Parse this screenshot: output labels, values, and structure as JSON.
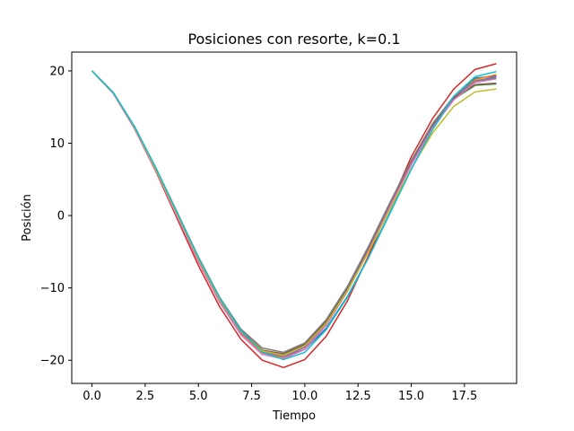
{
  "chart_data": {
    "type": "line",
    "title": "Posiciones con resorte, k=0.1",
    "xlabel": "Tiempo",
    "ylabel": "Posición",
    "xlim": [
      -0.95,
      19.95
    ],
    "ylim": [
      -23.2,
      22.6
    ],
    "xticks": [
      0.0,
      2.5,
      5.0,
      7.5,
      10.0,
      12.5,
      15.0,
      17.5
    ],
    "xtick_labels": [
      "0.0",
      "2.5",
      "5.0",
      "7.5",
      "10.0",
      "12.5",
      "15.0",
      "17.5"
    ],
    "yticks": [
      -20,
      -10,
      0,
      10,
      20
    ],
    "ytick_labels": [
      "−20",
      "−10",
      "0",
      "10",
      "20"
    ],
    "grid": false,
    "x": [
      0,
      1,
      2,
      3,
      4,
      5,
      6,
      7,
      8,
      9,
      10,
      11,
      12,
      13,
      14,
      15,
      16,
      17,
      18,
      19
    ],
    "series": [
      {
        "color": "#1f77b4",
        "values": [
          20,
          17.0,
          12.3,
          6.6,
          0.4,
          -5.8,
          -11.4,
          -15.9,
          -18.7,
          -19.6,
          -18.5,
          -15.6,
          -11.2,
          -5.7,
          0.4,
          6.4,
          11.9,
          16.3,
          19.0,
          19.3
        ]
      },
      {
        "color": "#ff7f0e",
        "values": [
          20,
          16.9,
          12.1,
          6.3,
          0.0,
          -6.2,
          -11.9,
          -16.3,
          -19.0,
          -19.6,
          -18.2,
          -14.9,
          -10.2,
          -4.6,
          1.4,
          7.2,
          12.3,
          16.3,
          18.8,
          19.5
        ]
      },
      {
        "color": "#2ca02c",
        "values": [
          20,
          17.0,
          12.2,
          6.5,
          0.3,
          -5.9,
          -11.5,
          -16.0,
          -18.6,
          -19.2,
          -17.9,
          -14.8,
          -10.2,
          -4.7,
          1.3,
          7.2,
          12.3,
          16.1,
          18.0,
          18.2
        ]
      },
      {
        "color": "#d62728",
        "values": [
          20,
          16.9,
          12.0,
          6.1,
          -0.4,
          -6.9,
          -12.6,
          -17.1,
          -20.0,
          -21.0,
          -19.9,
          -16.7,
          -11.8,
          -5.5,
          1.4,
          8.1,
          13.4,
          17.5,
          20.2,
          21.0
        ]
      },
      {
        "color": "#9467bd",
        "values": [
          20,
          16.9,
          12.1,
          6.3,
          0.1,
          -6.1,
          -11.7,
          -16.1,
          -18.8,
          -19.5,
          -18.2,
          -15.0,
          -10.3,
          -4.7,
          1.3,
          7.1,
          12.2,
          16.2,
          18.6,
          19.2
        ]
      },
      {
        "color": "#8c564b",
        "values": [
          20,
          17.0,
          12.2,
          6.5,
          0.3,
          -5.9,
          -11.5,
          -15.9,
          -18.6,
          -19.1,
          -17.8,
          -14.6,
          -9.9,
          -4.3,
          1.7,
          7.5,
          12.6,
          16.3,
          18.1,
          18.3
        ]
      },
      {
        "color": "#e377c2",
        "values": [
          20,
          16.9,
          12.0,
          6.2,
          -0.1,
          -6.4,
          -12.0,
          -16.5,
          -19.2,
          -19.8,
          -18.5,
          -15.2,
          -10.5,
          -4.9,
          1.2,
          7.0,
          12.1,
          16.0,
          18.4,
          18.9
        ]
      },
      {
        "color": "#7f7f7f",
        "values": [
          20,
          17.0,
          12.3,
          6.6,
          0.5,
          -5.7,
          -11.3,
          -15.7,
          -18.3,
          -18.9,
          -17.6,
          -14.4,
          -9.8,
          -4.2,
          1.8,
          7.6,
          12.7,
          16.5,
          18.6,
          19.0
        ]
      },
      {
        "color": "#bcbd22",
        "values": [
          20,
          17.0,
          12.2,
          6.4,
          0.2,
          -6.0,
          -11.6,
          -16.0,
          -18.7,
          -19.3,
          -18.0,
          -14.9,
          -10.4,
          -5.0,
          0.9,
          6.5,
          11.4,
          15.1,
          17.1,
          17.5
        ]
      },
      {
        "color": "#17becf",
        "values": [
          20,
          17.0,
          12.3,
          6.6,
          0.4,
          -5.8,
          -11.4,
          -15.9,
          -18.9,
          -19.9,
          -18.9,
          -15.8,
          -11.3,
          -5.8,
          0.3,
          6.4,
          11.9,
          16.5,
          19.2,
          19.9
        ]
      }
    ]
  }
}
